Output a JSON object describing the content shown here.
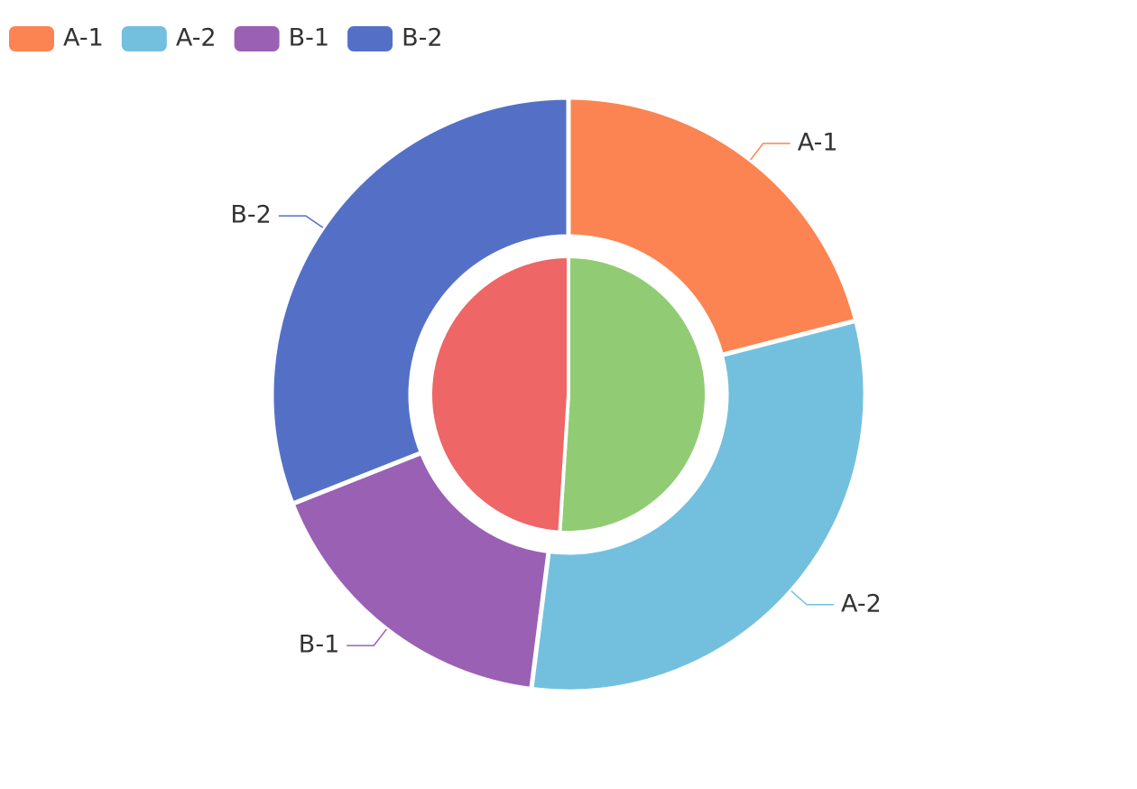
{
  "chart_data": {
    "type": "pie",
    "categories": [
      "A-1",
      "A-2",
      "B-1",
      "B-2"
    ],
    "values": [
      21,
      31,
      17,
      31
    ],
    "colors": [
      "#fc8452",
      "#73c0de",
      "#9a60b4",
      "#5470c6"
    ],
    "inner_values": [
      51,
      49
    ],
    "inner_colors": [
      "#91cc75",
      "#ee6666"
    ],
    "legend": "top-left"
  }
}
